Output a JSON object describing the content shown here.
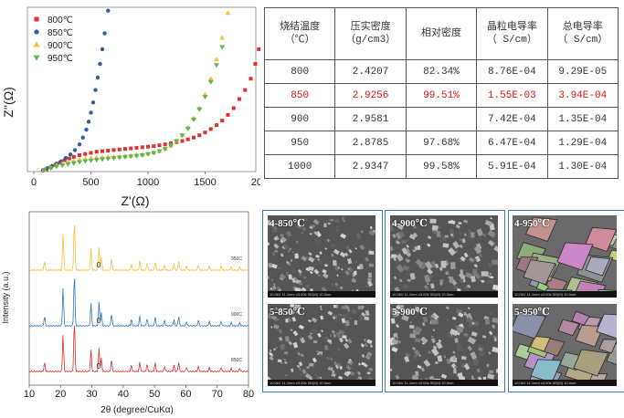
{
  "impedance": {
    "x_axis_label": "Z'(Ω)",
    "y_axis_label": "Z''(Ω)",
    "x_ticks": [
      "0",
      "500",
      "1000",
      "1500",
      "2000"
    ],
    "legend": [
      {
        "label": "800℃",
        "color": "#e03030",
        "marker": "square"
      },
      {
        "label": "850℃",
        "color": "#2f5f9f",
        "marker": "circle"
      },
      {
        "label": "900℃",
        "color": "#f2c23a",
        "marker": "triangle-up"
      },
      {
        "label": "950℃",
        "color": "#5ab45a",
        "marker": "triangle-down"
      }
    ]
  },
  "table": {
    "headers": [
      [
        "烧结温度",
        "（℃）"
      ],
      [
        "压实密度",
        "（g/cm3）"
      ],
      [
        "相对密度"
      ],
      [
        "晶粒电导率",
        "（ S/cm）"
      ],
      [
        "总电导率",
        "（ S/cm）"
      ]
    ],
    "rows": [
      {
        "cells": [
          "800",
          "2.4207",
          "82.34%",
          "8.76E-04",
          "9.29E-05"
        ],
        "highlight": false
      },
      {
        "cells": [
          "850",
          "2.9256",
          "99.51%",
          "1.55E-03",
          "3.94E-04"
        ],
        "highlight": true
      },
      {
        "cells": [
          "900",
          "2.9581",
          "",
          "7.42E-04",
          "1.35E-04"
        ],
        "highlight": false
      },
      {
        "cells": [
          "950",
          "2.8785",
          "97.68%",
          "6.47E-04",
          "1.29E-04"
        ],
        "highlight": false
      },
      {
        "cells": [
          "1000",
          "2.9347",
          "99.58%",
          "5.91E-04",
          "1.30E-04"
        ],
        "highlight": false
      }
    ]
  },
  "xrd": {
    "y_axis_label": "Intensity (a.u.)",
    "x_axis_label": "2θ (degree/CuKα)",
    "x_ticks": [
      "10",
      "20",
      "30",
      "40",
      "50",
      "60",
      "70",
      "80"
    ],
    "traces": [
      {
        "label": "950C",
        "color": "#f2c23a"
      },
      {
        "label": "900C",
        "color": "#2f78c0"
      },
      {
        "label": "850C",
        "color": "#e03030"
      }
    ],
    "marker_text": "0"
  },
  "sem": {
    "labels": [
      "4-850℃",
      "4-900℃",
      "4-950℃",
      "5-850℃",
      "5-900℃",
      "5-950℃"
    ],
    "info_bar": "10.0kV 11.1mm x3.00k SE(M)        10.0um"
  },
  "chart_data": [
    {
      "type": "scatter",
      "title": "",
      "xlabel": "Z'(Ω)",
      "ylabel": "Z''(Ω)",
      "xlim": [
        0,
        2000
      ],
      "ylim": [
        0,
        1450
      ],
      "series": [
        {
          "name": "800℃",
          "x": [
            110,
            150,
            190,
            230,
            270,
            310,
            350,
            400,
            450,
            500,
            550,
            600,
            650,
            700,
            750,
            800,
            850,
            900,
            950,
            1000,
            1050,
            1100,
            1150,
            1200,
            1250,
            1300,
            1350,
            1400,
            1450,
            1500,
            1550,
            1600,
            1650,
            1700,
            1750,
            1800,
            1850,
            1900,
            1940,
            1970
          ],
          "y": [
            20,
            40,
            60,
            80,
            100,
            115,
            130,
            145,
            155,
            165,
            175,
            180,
            185,
            190,
            195,
            200,
            205,
            210,
            215,
            220,
            225,
            232,
            240,
            250,
            260,
            270,
            285,
            300,
            320,
            345,
            375,
            410,
            450,
            500,
            560,
            640,
            720,
            820,
            950,
            1080
          ]
        },
        {
          "name": "850℃",
          "x": [
            80,
            120,
            160,
            200,
            240,
            280,
            320,
            360,
            400,
            430,
            460,
            480,
            500,
            520,
            540,
            560,
            580,
            600,
            620,
            650
          ],
          "y": [
            10,
            30,
            50,
            70,
            90,
            120,
            150,
            190,
            240,
            300,
            370,
            440,
            520,
            610,
            720,
            830,
            950,
            1080,
            1220,
            1420
          ]
        },
        {
          "name": "900℃",
          "x": [
            90,
            150,
            200,
            250,
            300,
            350,
            400,
            450,
            500,
            550,
            600,
            650,
            700,
            750,
            800,
            850,
            900,
            950,
            1000,
            1050,
            1100,
            1150,
            1200,
            1250,
            1300,
            1350,
            1400,
            1450,
            1500,
            1550,
            1600,
            1650,
            1700
          ],
          "y": [
            15,
            35,
            55,
            70,
            85,
            95,
            105,
            112,
            118,
            122,
            125,
            128,
            130,
            133,
            136,
            140,
            145,
            150,
            158,
            168,
            180,
            200,
            230,
            270,
            320,
            390,
            470,
            560,
            680,
            820,
            990,
            1180,
            1400
          ]
        },
        {
          "name": "950℃",
          "x": [
            90,
            150,
            200,
            250,
            300,
            350,
            400,
            450,
            500,
            550,
            600,
            650,
            700,
            750,
            800,
            850,
            900,
            950,
            1000,
            1050,
            1100,
            1150,
            1200,
            1250,
            1300,
            1350,
            1400,
            1450,
            1500,
            1550,
            1600,
            1650
          ],
          "y": [
            15,
            30,
            45,
            55,
            65,
            75,
            85,
            92,
            98,
            104,
            110,
            115,
            120,
            125,
            130,
            135,
            140,
            145,
            155,
            165,
            180,
            200,
            230,
            270,
            320,
            380,
            460,
            550,
            660,
            790,
            940,
            1100
          ]
        }
      ]
    },
    {
      "type": "line",
      "title": "",
      "xlabel": "2θ (degree/CuKα)",
      "ylabel": "Intensity (a.u.)",
      "xlim": [
        10,
        80
      ],
      "peaks_2theta": [
        14.9,
        20.8,
        24.4,
        29.7,
        32.3,
        33.0,
        36.3,
        42.6,
        45.3,
        47.6,
        50.2,
        53.2,
        56.2,
        57.7,
        60.2,
        64.0,
        67.5,
        71.3,
        74.5,
        77.2
      ],
      "peak_relative_intensity": [
        0.18,
        0.72,
        1.0,
        0.42,
        0.45,
        0.25,
        0.22,
        0.12,
        0.18,
        0.14,
        0.16,
        0.1,
        0.12,
        0.18,
        0.08,
        0.1,
        0.08,
        0.08,
        0.06,
        0.06
      ],
      "series": [
        {
          "name": "950C"
        },
        {
          "name": "900C"
        },
        {
          "name": "850C"
        }
      ]
    }
  ]
}
